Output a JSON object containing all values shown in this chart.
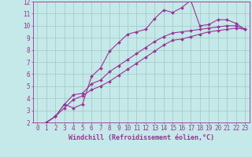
{
  "background_color": "#c5e8e8",
  "grid_color": "#a0c8c8",
  "line_color": "#993399",
  "marker": "D",
  "marker_size": 2,
  "line_width": 0.8,
  "xlabel": "Windchill (Refroidissement éolien,°C)",
  "xlabel_fontsize": 6,
  "tick_fontsize": 5.5,
  "xlim": [
    -0.5,
    23.5
  ],
  "ylim": [
    2,
    12
  ],
  "yticks": [
    2,
    3,
    4,
    5,
    6,
    7,
    8,
    9,
    10,
    11,
    12
  ],
  "xticks": [
    0,
    1,
    2,
    3,
    4,
    5,
    6,
    7,
    8,
    9,
    10,
    11,
    12,
    13,
    14,
    15,
    16,
    17,
    18,
    19,
    20,
    21,
    22,
    23
  ],
  "curve1_x": [
    1,
    2,
    3,
    4,
    5,
    6,
    7,
    8,
    9,
    10,
    11,
    12,
    13,
    14,
    15,
    16,
    17,
    18,
    19,
    20,
    21,
    22,
    23
  ],
  "curve1_y": [
    2.0,
    2.5,
    3.5,
    3.2,
    3.5,
    5.8,
    6.5,
    7.9,
    8.6,
    9.3,
    9.5,
    9.7,
    10.6,
    11.3,
    11.1,
    11.5,
    12.1,
    10.0,
    10.1,
    10.5,
    10.5,
    10.2,
    9.7
  ],
  "curve2_x": [
    1,
    2,
    3,
    4,
    5,
    6,
    7,
    8,
    9,
    10,
    11,
    12,
    13,
    14,
    15,
    16,
    17,
    18,
    19,
    20,
    21,
    22,
    23
  ],
  "curve2_y": [
    2.0,
    2.5,
    3.5,
    4.3,
    4.4,
    5.2,
    5.5,
    6.2,
    6.7,
    7.2,
    7.7,
    8.2,
    8.7,
    9.1,
    9.4,
    9.5,
    9.6,
    9.7,
    9.8,
    9.9,
    10.0,
    10.0,
    9.7
  ],
  "curve3_x": [
    1,
    2,
    3,
    4,
    5,
    6,
    7,
    8,
    9,
    10,
    11,
    12,
    13,
    14,
    15,
    16,
    17,
    18,
    19,
    20,
    21,
    22,
    23
  ],
  "curve3_y": [
    2.0,
    2.5,
    3.2,
    3.9,
    4.2,
    4.7,
    5.0,
    5.4,
    5.9,
    6.4,
    6.9,
    7.4,
    7.9,
    8.4,
    8.8,
    8.9,
    9.1,
    9.3,
    9.5,
    9.6,
    9.7,
    9.8,
    9.7
  ]
}
